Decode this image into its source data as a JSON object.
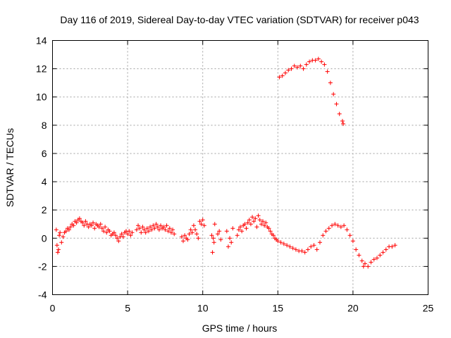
{
  "chart_data": {
    "type": "scatter",
    "title": "Day 116 of 2019, Sidereal Day-to-day VTEC variation (SDTVAR) for receiver p043",
    "xlabel": "GPS time / hours",
    "ylabel": "SDTVAR / TECUs",
    "xlim": [
      0,
      25
    ],
    "ylim": [
      -4,
      14
    ],
    "xticks": [
      0,
      5,
      10,
      15,
      20,
      25
    ],
    "yticks": [
      -4,
      -2,
      0,
      2,
      4,
      6,
      8,
      10,
      12,
      14
    ],
    "grid": true,
    "marker": "+",
    "series": [
      {
        "name": "SDTVAR",
        "color": "#ff0000",
        "points": [
          [
            0.25,
            0.6
          ],
          [
            0.3,
            -0.5
          ],
          [
            0.35,
            -1.0
          ],
          [
            0.4,
            -0.8
          ],
          [
            0.45,
            0.2
          ],
          [
            0.5,
            0.4
          ],
          [
            0.6,
            -0.3
          ],
          [
            0.7,
            0.1
          ],
          [
            0.8,
            0.4
          ],
          [
            0.9,
            0.5
          ],
          [
            1.0,
            0.7
          ],
          [
            1.1,
            0.6
          ],
          [
            1.2,
            0.8
          ],
          [
            1.3,
            1.0
          ],
          [
            1.4,
            0.9
          ],
          [
            1.5,
            1.2
          ],
          [
            1.6,
            1.1
          ],
          [
            1.7,
            1.3
          ],
          [
            1.8,
            1.4
          ],
          [
            1.9,
            1.2
          ],
          [
            2.0,
            1.1
          ],
          [
            2.1,
            0.9
          ],
          [
            2.2,
            1.2
          ],
          [
            2.3,
            1.0
          ],
          [
            2.4,
            0.8
          ],
          [
            2.5,
            1.0
          ],
          [
            2.6,
            0.9
          ],
          [
            2.7,
            1.1
          ],
          [
            2.8,
            0.7
          ],
          [
            2.9,
            1.0
          ],
          [
            3.0,
            0.9
          ],
          [
            3.1,
            0.8
          ],
          [
            3.2,
            1.0
          ],
          [
            3.3,
            0.7
          ],
          [
            3.4,
            0.5
          ],
          [
            3.5,
            0.8
          ],
          [
            3.6,
            0.4
          ],
          [
            3.7,
            0.6
          ],
          [
            3.8,
            0.5
          ],
          [
            3.9,
            0.2
          ],
          [
            4.0,
            0.3
          ],
          [
            4.1,
            0.4
          ],
          [
            4.2,
            0.2
          ],
          [
            4.3,
            0.0
          ],
          [
            4.4,
            -0.2
          ],
          [
            4.5,
            0.1
          ],
          [
            4.6,
            0.3
          ],
          [
            4.7,
            0.1
          ],
          [
            4.8,
            0.4
          ],
          [
            4.9,
            0.5
          ],
          [
            5.0,
            0.3
          ],
          [
            5.1,
            0.5
          ],
          [
            5.2,
            0.2
          ],
          [
            5.3,
            0.4
          ],
          [
            5.6,
            0.6
          ],
          [
            5.7,
            0.9
          ],
          [
            5.8,
            0.7
          ],
          [
            5.9,
            0.4
          ],
          [
            6.0,
            0.8
          ],
          [
            6.1,
            0.6
          ],
          [
            6.2,
            0.4
          ],
          [
            6.3,
            0.7
          ],
          [
            6.4,
            0.5
          ],
          [
            6.5,
            0.8
          ],
          [
            6.6,
            0.6
          ],
          [
            6.7,
            0.9
          ],
          [
            6.8,
            0.7
          ],
          [
            6.9,
            1.0
          ],
          [
            7.0,
            0.8
          ],
          [
            7.1,
            0.6
          ],
          [
            7.2,
            0.9
          ],
          [
            7.3,
            0.7
          ],
          [
            7.4,
            0.8
          ],
          [
            7.5,
            0.6
          ],
          [
            7.6,
            0.9
          ],
          [
            7.7,
            0.5
          ],
          [
            7.8,
            0.7
          ],
          [
            7.9,
            0.4
          ],
          [
            8.0,
            0.6
          ],
          [
            8.1,
            0.3
          ],
          [
            8.6,
            0.1
          ],
          [
            8.7,
            -0.2
          ],
          [
            8.8,
            0.2
          ],
          [
            8.9,
            0.0
          ],
          [
            9.0,
            -0.1
          ],
          [
            9.1,
            0.3
          ],
          [
            9.2,
            0.6
          ],
          [
            9.3,
            0.4
          ],
          [
            9.4,
            0.9
          ],
          [
            9.5,
            0.6
          ],
          [
            9.6,
            0.3
          ],
          [
            9.7,
            0.0
          ],
          [
            9.8,
            1.2
          ],
          [
            9.9,
            1.0
          ],
          [
            10.0,
            1.3
          ],
          [
            10.1,
            0.9
          ],
          [
            10.6,
            0.2
          ],
          [
            10.65,
            -1.0
          ],
          [
            10.7,
            0.0
          ],
          [
            10.75,
            -0.3
          ],
          [
            10.8,
            1.0
          ],
          [
            11.0,
            0.3
          ],
          [
            11.1,
            0.5
          ],
          [
            11.2,
            -0.1
          ],
          [
            11.6,
            0.5
          ],
          [
            11.7,
            -0.6
          ],
          [
            11.8,
            0.0
          ],
          [
            11.9,
            -0.3
          ],
          [
            12.0,
            0.7
          ],
          [
            12.3,
            0.2
          ],
          [
            12.4,
            0.6
          ],
          [
            12.5,
            0.8
          ],
          [
            12.6,
            0.5
          ],
          [
            12.7,
            0.9
          ],
          [
            12.8,
            1.0
          ],
          [
            12.9,
            0.7
          ],
          [
            13.0,
            1.1
          ],
          [
            13.1,
            1.3
          ],
          [
            13.2,
            1.0
          ],
          [
            13.3,
            1.5
          ],
          [
            13.4,
            1.2
          ],
          [
            13.5,
            1.4
          ],
          [
            13.6,
            0.8
          ],
          [
            13.7,
            1.6
          ],
          [
            13.8,
            1.3
          ],
          [
            13.9,
            1.0
          ],
          [
            14.0,
            1.2
          ],
          [
            14.1,
            0.9
          ],
          [
            14.2,
            1.1
          ],
          [
            14.3,
            0.8
          ],
          [
            14.4,
            0.7
          ],
          [
            14.5,
            0.5
          ],
          [
            14.6,
            0.3
          ],
          [
            14.7,
            0.2
          ],
          [
            14.8,
            0.0
          ],
          [
            14.9,
            -0.1
          ],
          [
            15.0,
            -0.2
          ],
          [
            15.2,
            -0.3
          ],
          [
            15.4,
            -0.4
          ],
          [
            15.6,
            -0.5
          ],
          [
            15.8,
            -0.6
          ],
          [
            16.0,
            -0.7
          ],
          [
            16.2,
            -0.8
          ],
          [
            16.4,
            -0.9
          ],
          [
            16.6,
            -0.9
          ],
          [
            16.8,
            -1.0
          ],
          [
            17.0,
            -0.8
          ],
          [
            17.2,
            -0.6
          ],
          [
            17.4,
            -0.5
          ],
          [
            17.6,
            -0.8
          ],
          [
            17.8,
            -0.3
          ],
          [
            18.0,
            0.2
          ],
          [
            18.2,
            0.5
          ],
          [
            18.4,
            0.7
          ],
          [
            18.6,
            0.9
          ],
          [
            18.8,
            1.0
          ],
          [
            19.0,
            0.9
          ],
          [
            19.2,
            0.8
          ],
          [
            19.4,
            0.9
          ],
          [
            19.6,
            0.6
          ],
          [
            19.8,
            0.2
          ],
          [
            20.0,
            -0.2
          ],
          [
            20.2,
            -0.8
          ],
          [
            20.4,
            -1.2
          ],
          [
            20.6,
            -1.6
          ],
          [
            20.7,
            -2.0
          ],
          [
            20.8,
            -1.8
          ],
          [
            21.0,
            -2.0
          ],
          [
            21.2,
            -1.7
          ],
          [
            21.4,
            -1.5
          ],
          [
            21.6,
            -1.4
          ],
          [
            21.8,
            -1.2
          ],
          [
            22.0,
            -1.0
          ],
          [
            22.2,
            -0.8
          ],
          [
            22.4,
            -0.6
          ],
          [
            22.6,
            -0.6
          ],
          [
            22.8,
            -0.5
          ],
          [
            15.1,
            11.4
          ],
          [
            15.3,
            11.5
          ],
          [
            15.5,
            11.7
          ],
          [
            15.7,
            11.9
          ],
          [
            15.9,
            12.0
          ],
          [
            16.1,
            12.2
          ],
          [
            16.3,
            12.1
          ],
          [
            16.5,
            12.2
          ],
          [
            16.7,
            12.0
          ],
          [
            16.9,
            12.3
          ],
          [
            17.1,
            12.5
          ],
          [
            17.3,
            12.6
          ],
          [
            17.5,
            12.6
          ],
          [
            17.7,
            12.7
          ],
          [
            17.9,
            12.5
          ],
          [
            18.1,
            12.3
          ],
          [
            18.3,
            11.8
          ],
          [
            18.5,
            11.0
          ],
          [
            18.7,
            10.2
          ],
          [
            18.9,
            9.5
          ],
          [
            19.1,
            8.8
          ],
          [
            19.3,
            8.3
          ],
          [
            19.35,
            8.1
          ]
        ]
      }
    ]
  }
}
